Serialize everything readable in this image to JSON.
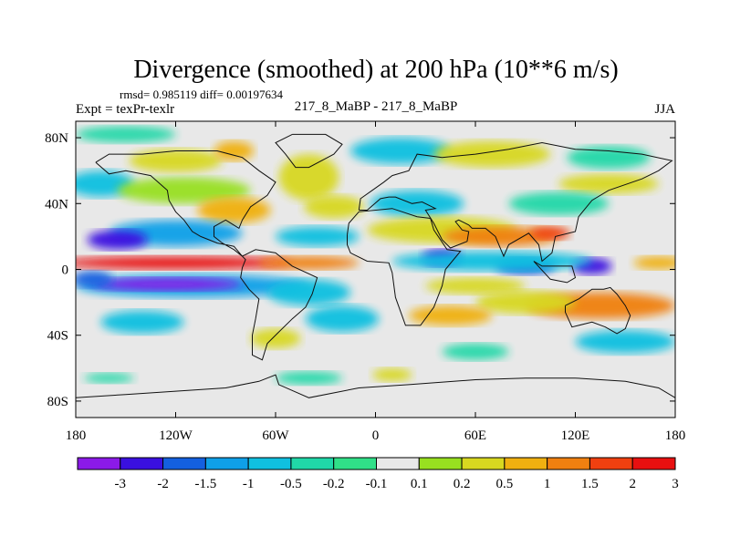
{
  "chart_data": {
    "type": "heatmap",
    "title": "Divergence (smoothed) at 200 hPa (10**6 m/s)",
    "stats": "rmsd= 0.985119 diff= 0.00197634",
    "left_label": "Expt = texPr-texlr",
    "center_label": "217_8_MaBP - 217_8_MaBP",
    "right_label": "JJA",
    "x_range": [
      -180,
      180
    ],
    "y_range": [
      -90,
      90
    ],
    "x_ticks": [
      {
        "value": -180,
        "label": "180"
      },
      {
        "value": -120,
        "label": "120W"
      },
      {
        "value": -60,
        "label": "60W"
      },
      {
        "value": 0,
        "label": "0"
      },
      {
        "value": 60,
        "label": "60E"
      },
      {
        "value": 120,
        "label": "120E"
      },
      {
        "value": 180,
        "label": "180"
      }
    ],
    "y_ticks": [
      {
        "value": 80,
        "label": "80N"
      },
      {
        "value": 40,
        "label": "40N"
      },
      {
        "value": 0,
        "label": "0"
      },
      {
        "value": -40,
        "label": "40S"
      },
      {
        "value": -80,
        "label": "80S"
      }
    ],
    "colorbar": {
      "levels": [
        "-3",
        "-2",
        "-1.5",
        "-1",
        "-0.5",
        "-0.2",
        "-0.1",
        "0.1",
        "0.2",
        "0.5",
        "1",
        "1.5",
        "2",
        "3"
      ],
      "colors": [
        "#8B1AE8",
        "#3A10E0",
        "#1460E0",
        "#0FA0E8",
        "#10C0E0",
        "#20D8A8",
        "#30E088",
        "#E8E8E8",
        "#98E020",
        "#D8D820",
        "#F0B010",
        "#F08010",
        "#F04010",
        "#E81010"
      ]
    },
    "features": [
      {
        "name": "equatorial-positive-band",
        "lon_range": [
          -180,
          -60
        ],
        "lat_range": [
          0,
          8
        ],
        "value": 3
      },
      {
        "name": "southern-tropical-negative-band",
        "lon_range": [
          -170,
          -80
        ],
        "lat_range": [
          -14,
          -4
        ],
        "value": -3
      },
      {
        "name": "northern-tropical-negative-band",
        "lon_range": [
          -180,
          -120
        ],
        "lat_range": [
          10,
          22
        ],
        "value": -2
      },
      {
        "name": "africa-positive-maximum",
        "lon_range": [
          20,
          110
        ],
        "lat_range": [
          10,
          28
        ],
        "value": 1.5
      },
      {
        "name": "indian-ocean-negative-cells",
        "lon_range": [
          30,
          140
        ],
        "lat_range": [
          -6,
          10
        ],
        "value": -2
      },
      {
        "name": "south-pacific-positive-band",
        "lon_range": [
          80,
          180
        ],
        "lat_range": [
          -32,
          -15
        ],
        "value": 1.5
      },
      {
        "name": "antarctic-neutral",
        "lon_range": [
          -180,
          180
        ],
        "lat_range": [
          -90,
          -50
        ],
        "value": 0
      }
    ]
  }
}
